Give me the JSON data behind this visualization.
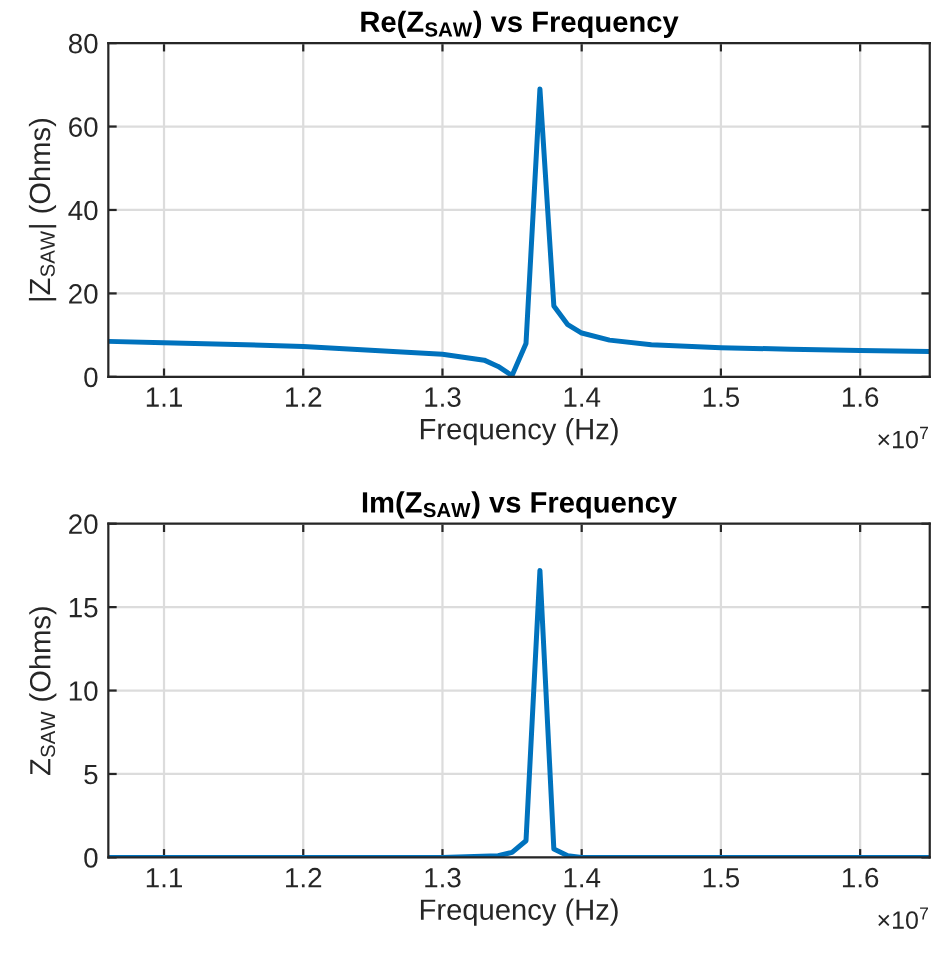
{
  "chart_data": [
    {
      "type": "line",
      "title": "Re(Z$_{SAW}$) vs Frequency",
      "xlabel": "Frequency (Hz)",
      "ylabel": "|Z$_{SAW}$| (Ohms)",
      "annotations": [
        "×10$^{7}$"
      ],
      "series": [
        {
          "color": "#0072bd",
          "x": [
            1.06,
            1.1,
            1.2,
            1.3,
            1.33,
            1.34,
            1.35,
            1.36,
            1.37,
            1.38,
            1.39,
            1.4,
            1.42,
            1.45,
            1.5,
            1.55,
            1.6,
            1.65
          ],
          "values": [
            8.5,
            8.2,
            7.3,
            5.4,
            4.0,
            2.5,
            0.3,
            8,
            69,
            17,
            12.5,
            10.5,
            8.8,
            7.7,
            7.0,
            6.6,
            6.3,
            6.1
          ]
        }
      ],
      "xlim": [
        1.06,
        1.65
      ],
      "xticks": [
        1.1,
        1.2,
        1.3,
        1.4,
        1.5,
        1.6
      ],
      "ylim": [
        0,
        80
      ],
      "yticks": [
        0,
        20,
        40,
        60,
        80
      ],
      "grid": true,
      "marker": "none",
      "line_style": "solid"
    },
    {
      "type": "line",
      "title": "Im(Z$_{SAW}$) vs Frequency",
      "xlabel": "Frequency (Hz)",
      "ylabel": "Z$_{SAW}$ (Ohms)",
      "annotations": [
        "×10$^{7}$"
      ],
      "series": [
        {
          "color": "#0072bd",
          "x": [
            1.06,
            1.3,
            1.34,
            1.35,
            1.36,
            1.37,
            1.38,
            1.39,
            1.4,
            1.45,
            1.65
          ],
          "values": [
            0,
            0,
            0.1,
            0.3,
            1.0,
            17.2,
            0.5,
            0.1,
            0,
            0,
            0
          ]
        }
      ],
      "xlim": [
        1.06,
        1.65
      ],
      "xticks": [
        1.1,
        1.2,
        1.3,
        1.4,
        1.5,
        1.6
      ],
      "ylim": [
        0,
        20
      ],
      "yticks": [
        0,
        5,
        10,
        15,
        20
      ],
      "grid": true,
      "marker": "none",
      "line_style": "solid"
    }
  ]
}
